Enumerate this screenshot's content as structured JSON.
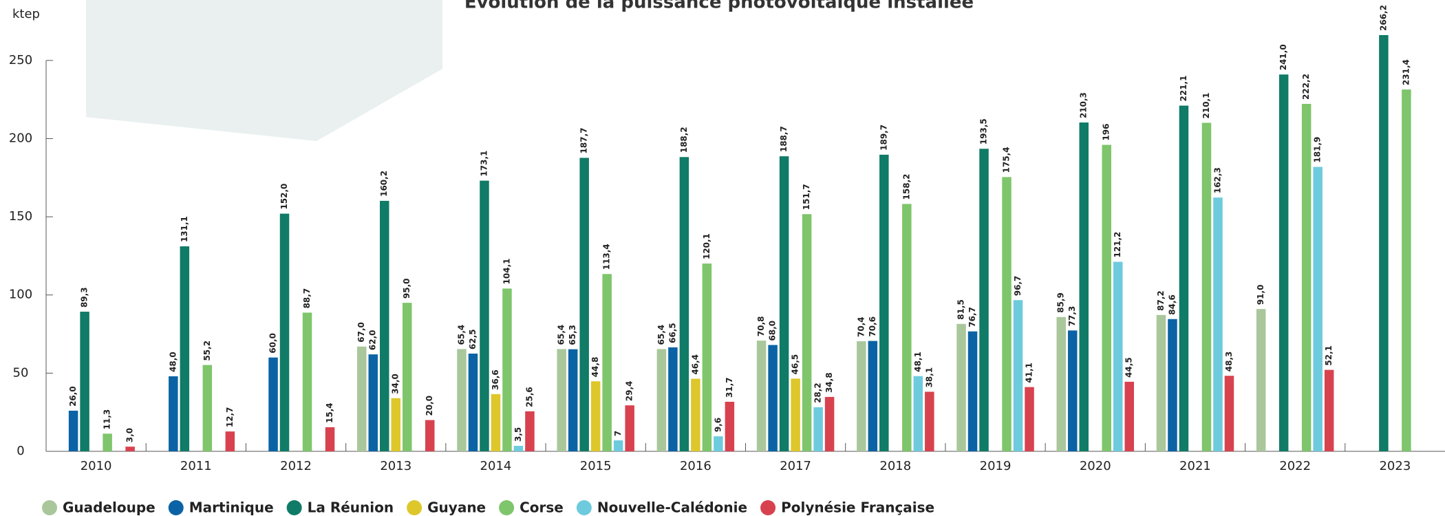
{
  "chart_data": {
    "type": "bar",
    "title": "Évolution de la puissance photovoltaïque installée",
    "y_unit": "ktep",
    "categories": [
      "2010",
      "2011",
      "2012",
      "2013",
      "2014",
      "2015",
      "2016",
      "2017",
      "2018",
      "2019",
      "2020",
      "2021",
      "2022",
      "2023"
    ],
    "ylim": [
      0,
      275
    ],
    "yticks": [
      0,
      50,
      100,
      150,
      200,
      250
    ],
    "series": [
      {
        "name": "Guadeloupe",
        "color": "#a9c79b",
        "values": [
          null,
          null,
          null,
          67.0,
          65.4,
          65.4,
          65.4,
          70.8,
          70.4,
          81.5,
          85.9,
          87.2,
          91.0,
          null
        ],
        "value_labels": [
          null,
          null,
          null,
          "67,0",
          "65,4",
          "65,4",
          "65,4",
          "70,8",
          "70,4",
          "81,5",
          "85,9",
          "87,2",
          "91,0",
          null
        ]
      },
      {
        "name": "Martinique",
        "color": "#0b63a5",
        "values": [
          26.0,
          48.0,
          60.0,
          62.0,
          62.5,
          65.3,
          66.5,
          68.0,
          70.6,
          76.7,
          77.3,
          84.6,
          null,
          null
        ],
        "value_labels": [
          "26,0",
          "48,0",
          "60,0",
          "62,0",
          "62,5",
          "65,3",
          "66,5",
          "68,0",
          "70,6",
          "76,7",
          "77,3",
          "84,6",
          null,
          null
        ]
      },
      {
        "name": "La Réunion",
        "color": "#107b66",
        "values": [
          89.3,
          131.1,
          152.0,
          160.2,
          173.1,
          187.7,
          188.2,
          188.7,
          189.7,
          193.5,
          210.3,
          221.1,
          241.0,
          266.2
        ],
        "value_labels": [
          "89,3",
          "131,1",
          "152,0",
          "160,2",
          "173,1",
          "187,7",
          "188,2",
          "188,7",
          "189,7",
          "193,5",
          "210,3",
          "221,1",
          "241,0",
          "266,2"
        ]
      },
      {
        "name": "Guyane",
        "color": "#dec72b",
        "values": [
          null,
          null,
          null,
          34.0,
          36.6,
          44.8,
          46.4,
          46.5,
          null,
          null,
          null,
          null,
          null,
          null
        ],
        "value_labels": [
          null,
          null,
          null,
          "34,0",
          "36,6",
          "44,8",
          "46,4",
          "46,5",
          null,
          null,
          null,
          null,
          null,
          null
        ]
      },
      {
        "name": "Corse",
        "color": "#7ec56b",
        "values": [
          11.3,
          55.2,
          88.7,
          95.0,
          104.1,
          113.4,
          120.1,
          151.7,
          158.2,
          175.4,
          196,
          210.1,
          222.2,
          231.4
        ],
        "value_labels": [
          "11,3",
          "55,2",
          "88,7",
          "95,0",
          "104,1",
          "113,4",
          "120,1",
          "151,7",
          "158,2",
          "175,4",
          "196",
          "210,1",
          "222,2",
          "231,4"
        ]
      },
      {
        "name": "Nouvelle-Calédonie",
        "color": "#6dcbdd",
        "values": [
          null,
          null,
          null,
          null,
          3.5,
          7,
          9.6,
          28.2,
          48.1,
          96.7,
          121.2,
          162.3,
          181.9,
          null
        ],
        "value_labels": [
          null,
          null,
          null,
          null,
          "3,5",
          "7",
          "9,6",
          "28,2",
          "48,1",
          "96,7",
          "121,2",
          "162,3",
          "181,9",
          null
        ]
      },
      {
        "name": "Polynésie Française",
        "color": "#d8424f",
        "values": [
          3.0,
          12.7,
          15.4,
          20.0,
          25.6,
          29.4,
          31.7,
          34.8,
          38.1,
          41.1,
          44.5,
          48.3,
          52.1,
          null
        ],
        "value_labels": [
          "3,0",
          "12,7",
          "15,4",
          "20,0",
          "25,6",
          "29,4",
          "31,7",
          "34,8",
          "38,1",
          "41,1",
          "44,5",
          "48,3",
          "52,1",
          null
        ]
      }
    ]
  }
}
